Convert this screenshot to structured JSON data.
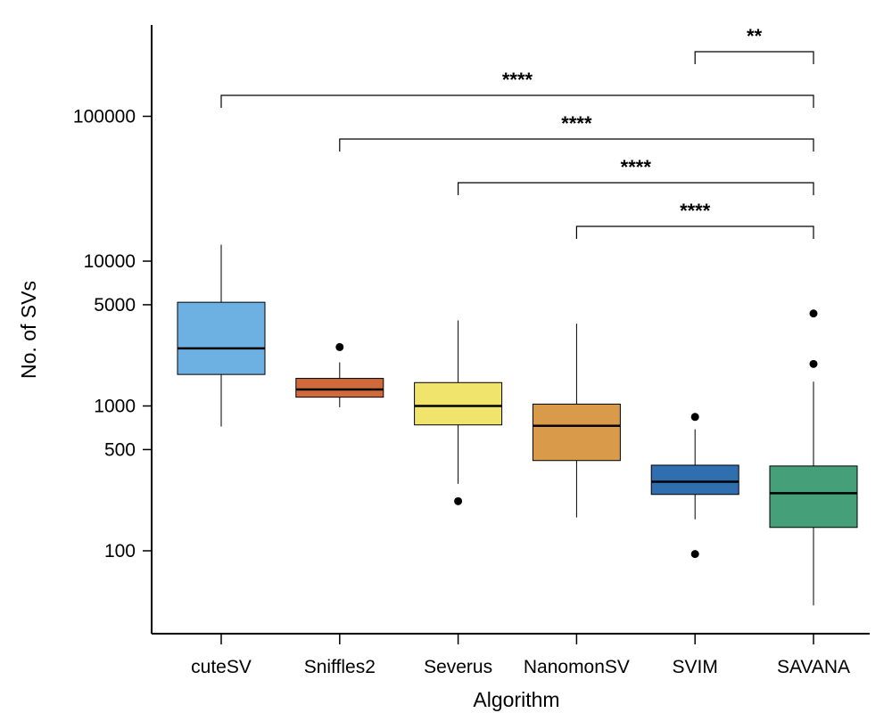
{
  "chart_data": {
    "type": "box",
    "title": "",
    "xlabel": "Algorithm",
    "ylabel": "No. of SVs",
    "yscale": "log",
    "ylim": [
      30,
      500000
    ],
    "yticks": [
      100,
      500,
      1000,
      5000,
      10000,
      100000
    ],
    "ytick_labels": [
      "100",
      "500",
      "1000",
      "5000",
      "10000",
      "100000"
    ],
    "categories": [
      "cuteSV",
      "Sniffles2",
      "Severus",
      "NanomonSV",
      "SVIM",
      "SAVANA"
    ],
    "boxes": [
      {
        "name": "cuteSV",
        "color": "#6cb1e1",
        "whisker_low": 720,
        "q1": 1650,
        "median": 2500,
        "q3": 5200,
        "whisker_high": 13000,
        "outliers": []
      },
      {
        "name": "Sniffles2",
        "color": "#d06a3a",
        "whisker_low": 980,
        "q1": 1150,
        "median": 1300,
        "q3": 1550,
        "whisker_high": 2000,
        "outliers": [
          2550
        ]
      },
      {
        "name": "Severus",
        "color": "#f0e46c",
        "whisker_low": 290,
        "q1": 740,
        "median": 1000,
        "q3": 1450,
        "whisker_high": 3900,
        "outliers": [
          220
        ]
      },
      {
        "name": "NanomonSV",
        "color": "#d99a4a",
        "whisker_low": 170,
        "q1": 420,
        "median": 730,
        "q3": 1030,
        "whisker_high": 3700,
        "outliers": []
      },
      {
        "name": "SVIM",
        "color": "#2f6fb0",
        "whisker_low": 165,
        "q1": 245,
        "median": 300,
        "q3": 390,
        "whisker_high": 690,
        "outliers": [
          840,
          95
        ]
      },
      {
        "name": "SAVANA",
        "color": "#45a07a",
        "whisker_low": 42,
        "q1": 145,
        "median": 250,
        "q3": 385,
        "whisker_high": 1470,
        "outliers": [
          4350,
          1950
        ]
      }
    ],
    "significance": [
      {
        "from": "SVIM",
        "to": "SAVANA",
        "label": "**"
      },
      {
        "from": "cuteSV",
        "to": "SAVANA",
        "label": "****"
      },
      {
        "from": "Sniffles2",
        "to": "SAVANA",
        "label": "****"
      },
      {
        "from": "Severus",
        "to": "SAVANA",
        "label": "****"
      },
      {
        "from": "NanomonSV",
        "to": "SAVANA",
        "label": "****"
      }
    ]
  }
}
